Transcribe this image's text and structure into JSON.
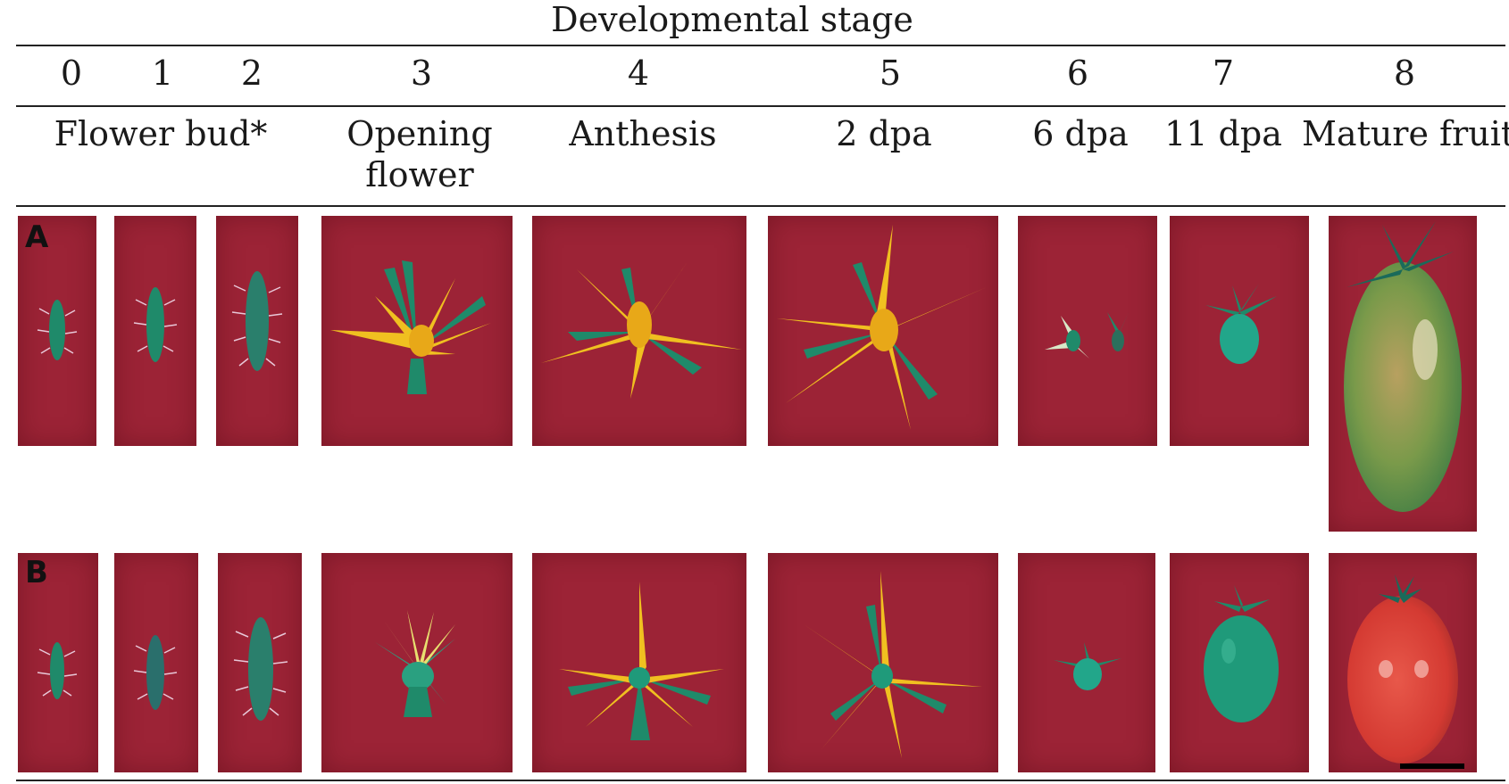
{
  "header": {
    "title": "Developmental stage",
    "stages": [
      "0",
      "1",
      "2",
      "3",
      "4",
      "5",
      "6",
      "7",
      "8"
    ],
    "descriptions": {
      "flower_bud": "Flower bud*",
      "opening_flower_line1": "Opening",
      "opening_flower_line2": "flower",
      "anthesis": "Anthesis",
      "dpa2": "2 dpa",
      "dpa6": "6 dpa",
      "dpa11": "11 dpa",
      "mature": "Mature fruit"
    }
  },
  "rows": [
    {
      "label": "A"
    },
    {
      "label": "B"
    }
  ],
  "colors": {
    "background_red": "#9c2336",
    "petal_yellow": "#f0c020",
    "sepal_green": "#1f8a6a",
    "fruit_green": "#1c9a7a",
    "mature_fruit_a": "#7a9a4a",
    "mature_fruit_b": "#d43a32"
  },
  "scale_bar": "black bar, bottom-right of panel B8"
}
